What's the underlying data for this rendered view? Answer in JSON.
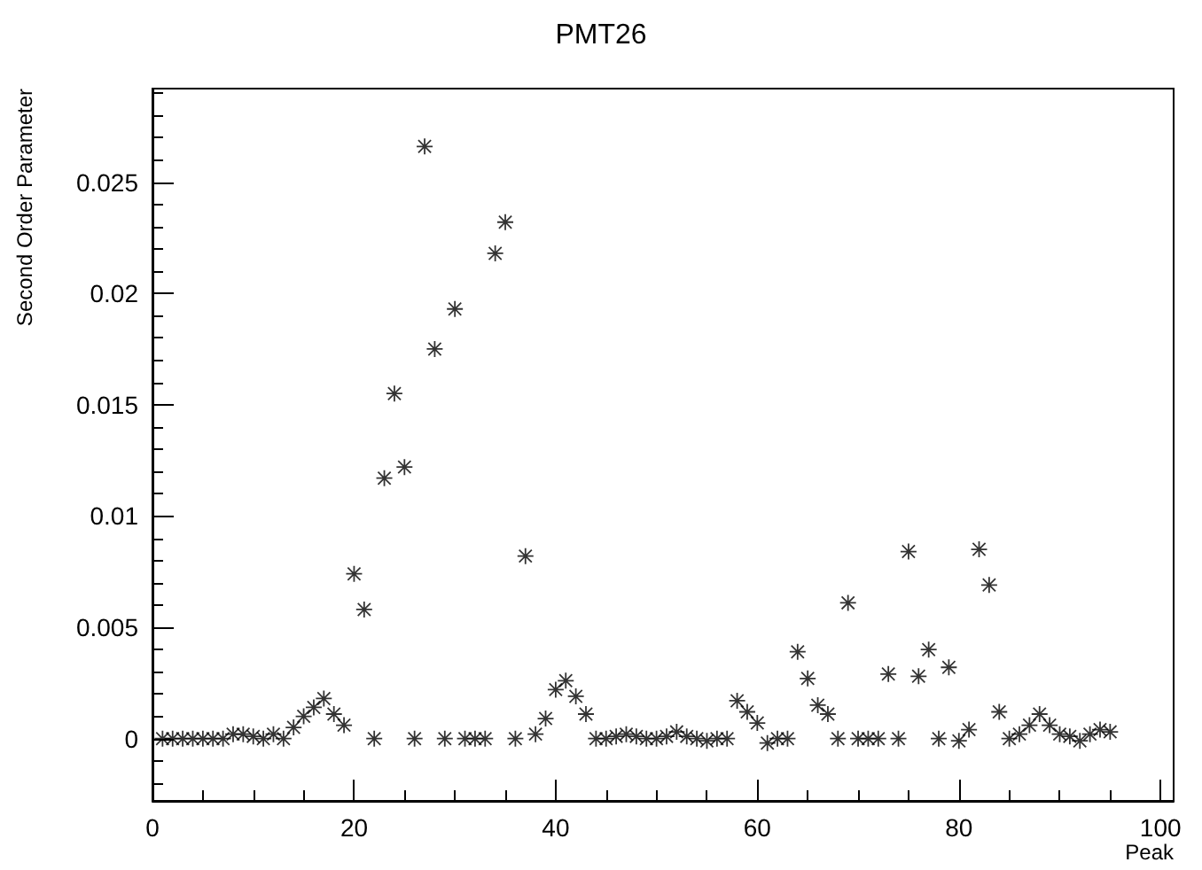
{
  "chart_data": {
    "type": "scatter",
    "title": "PMT26",
    "xlabel": "Peak",
    "ylabel": "Second Order Parameter",
    "x": [
      1,
      2,
      3,
      4,
      5,
      6,
      7,
      8,
      9,
      10,
      11,
      12,
      13,
      14,
      15,
      16,
      17,
      18,
      19,
      20,
      21,
      22,
      23,
      24,
      25,
      26,
      27,
      28,
      29,
      30,
      31,
      32,
      33,
      34,
      35,
      36,
      37,
      38,
      39,
      40,
      41,
      42,
      43,
      44,
      45,
      46,
      47,
      48,
      49,
      50,
      51,
      52,
      53,
      54,
      55,
      56,
      57,
      58,
      59,
      60,
      61,
      62,
      63,
      64,
      65,
      66,
      67,
      68,
      69,
      70,
      71,
      72,
      73,
      74,
      75,
      76,
      77,
      78,
      79,
      80,
      81,
      82,
      83,
      84,
      85,
      86,
      87,
      88,
      89,
      90,
      91,
      92,
      93,
      94,
      95
    ],
    "series": [
      {
        "color": "#000000",
        "values": [
          0,
          0,
          0,
          0,
          0,
          0,
          0,
          0.0002,
          0.0002,
          0.0001,
          0,
          0.0002,
          0,
          0.0005,
          0.001,
          0.0014,
          0.0018,
          0.0011,
          0.0006,
          0.0074,
          0.0058,
          0,
          0.0117,
          0.0155,
          0.0122,
          0,
          0.0266,
          0.0175,
          0,
          0.0193,
          0,
          0,
          0,
          0.0218,
          0.0232,
          0,
          0.0082,
          0.0002,
          0.0009,
          0.0022,
          0.0026,
          0.0019,
          0.0011,
          0,
          0,
          0.0001,
          0.0002,
          0.0001,
          0,
          0,
          0.0001,
          0.0003,
          0.0001,
          0,
          -0.0001,
          0,
          0,
          0.0017,
          0.0012,
          0.0007,
          -0.0002,
          0,
          0,
          0.0039,
          0.0027,
          0.0015,
          0.0011,
          0,
          0.0061,
          0,
          0,
          0,
          0.0029,
          0,
          0.0084,
          0.0028,
          0.004,
          0,
          0.0032,
          -0.0001,
          0.0004,
          0.0085,
          0.0069,
          0.0012,
          0,
          0.0002,
          0.0006,
          0.0011,
          0.0006,
          0.0002,
          0.0001,
          -0.0001,
          0.0002,
          0.0004,
          0.0003
        ]
      }
    ],
    "xlim": [
      0,
      101.3
    ],
    "xticks": [
      0,
      20,
      40,
      60,
      80,
      100
    ],
    "ylim": [
      -0.0028,
      0.0292
    ],
    "yticks": [
      0,
      0.005,
      0.01,
      0.015,
      0.02,
      0.025
    ],
    "marker": "star",
    "grid": false
  }
}
